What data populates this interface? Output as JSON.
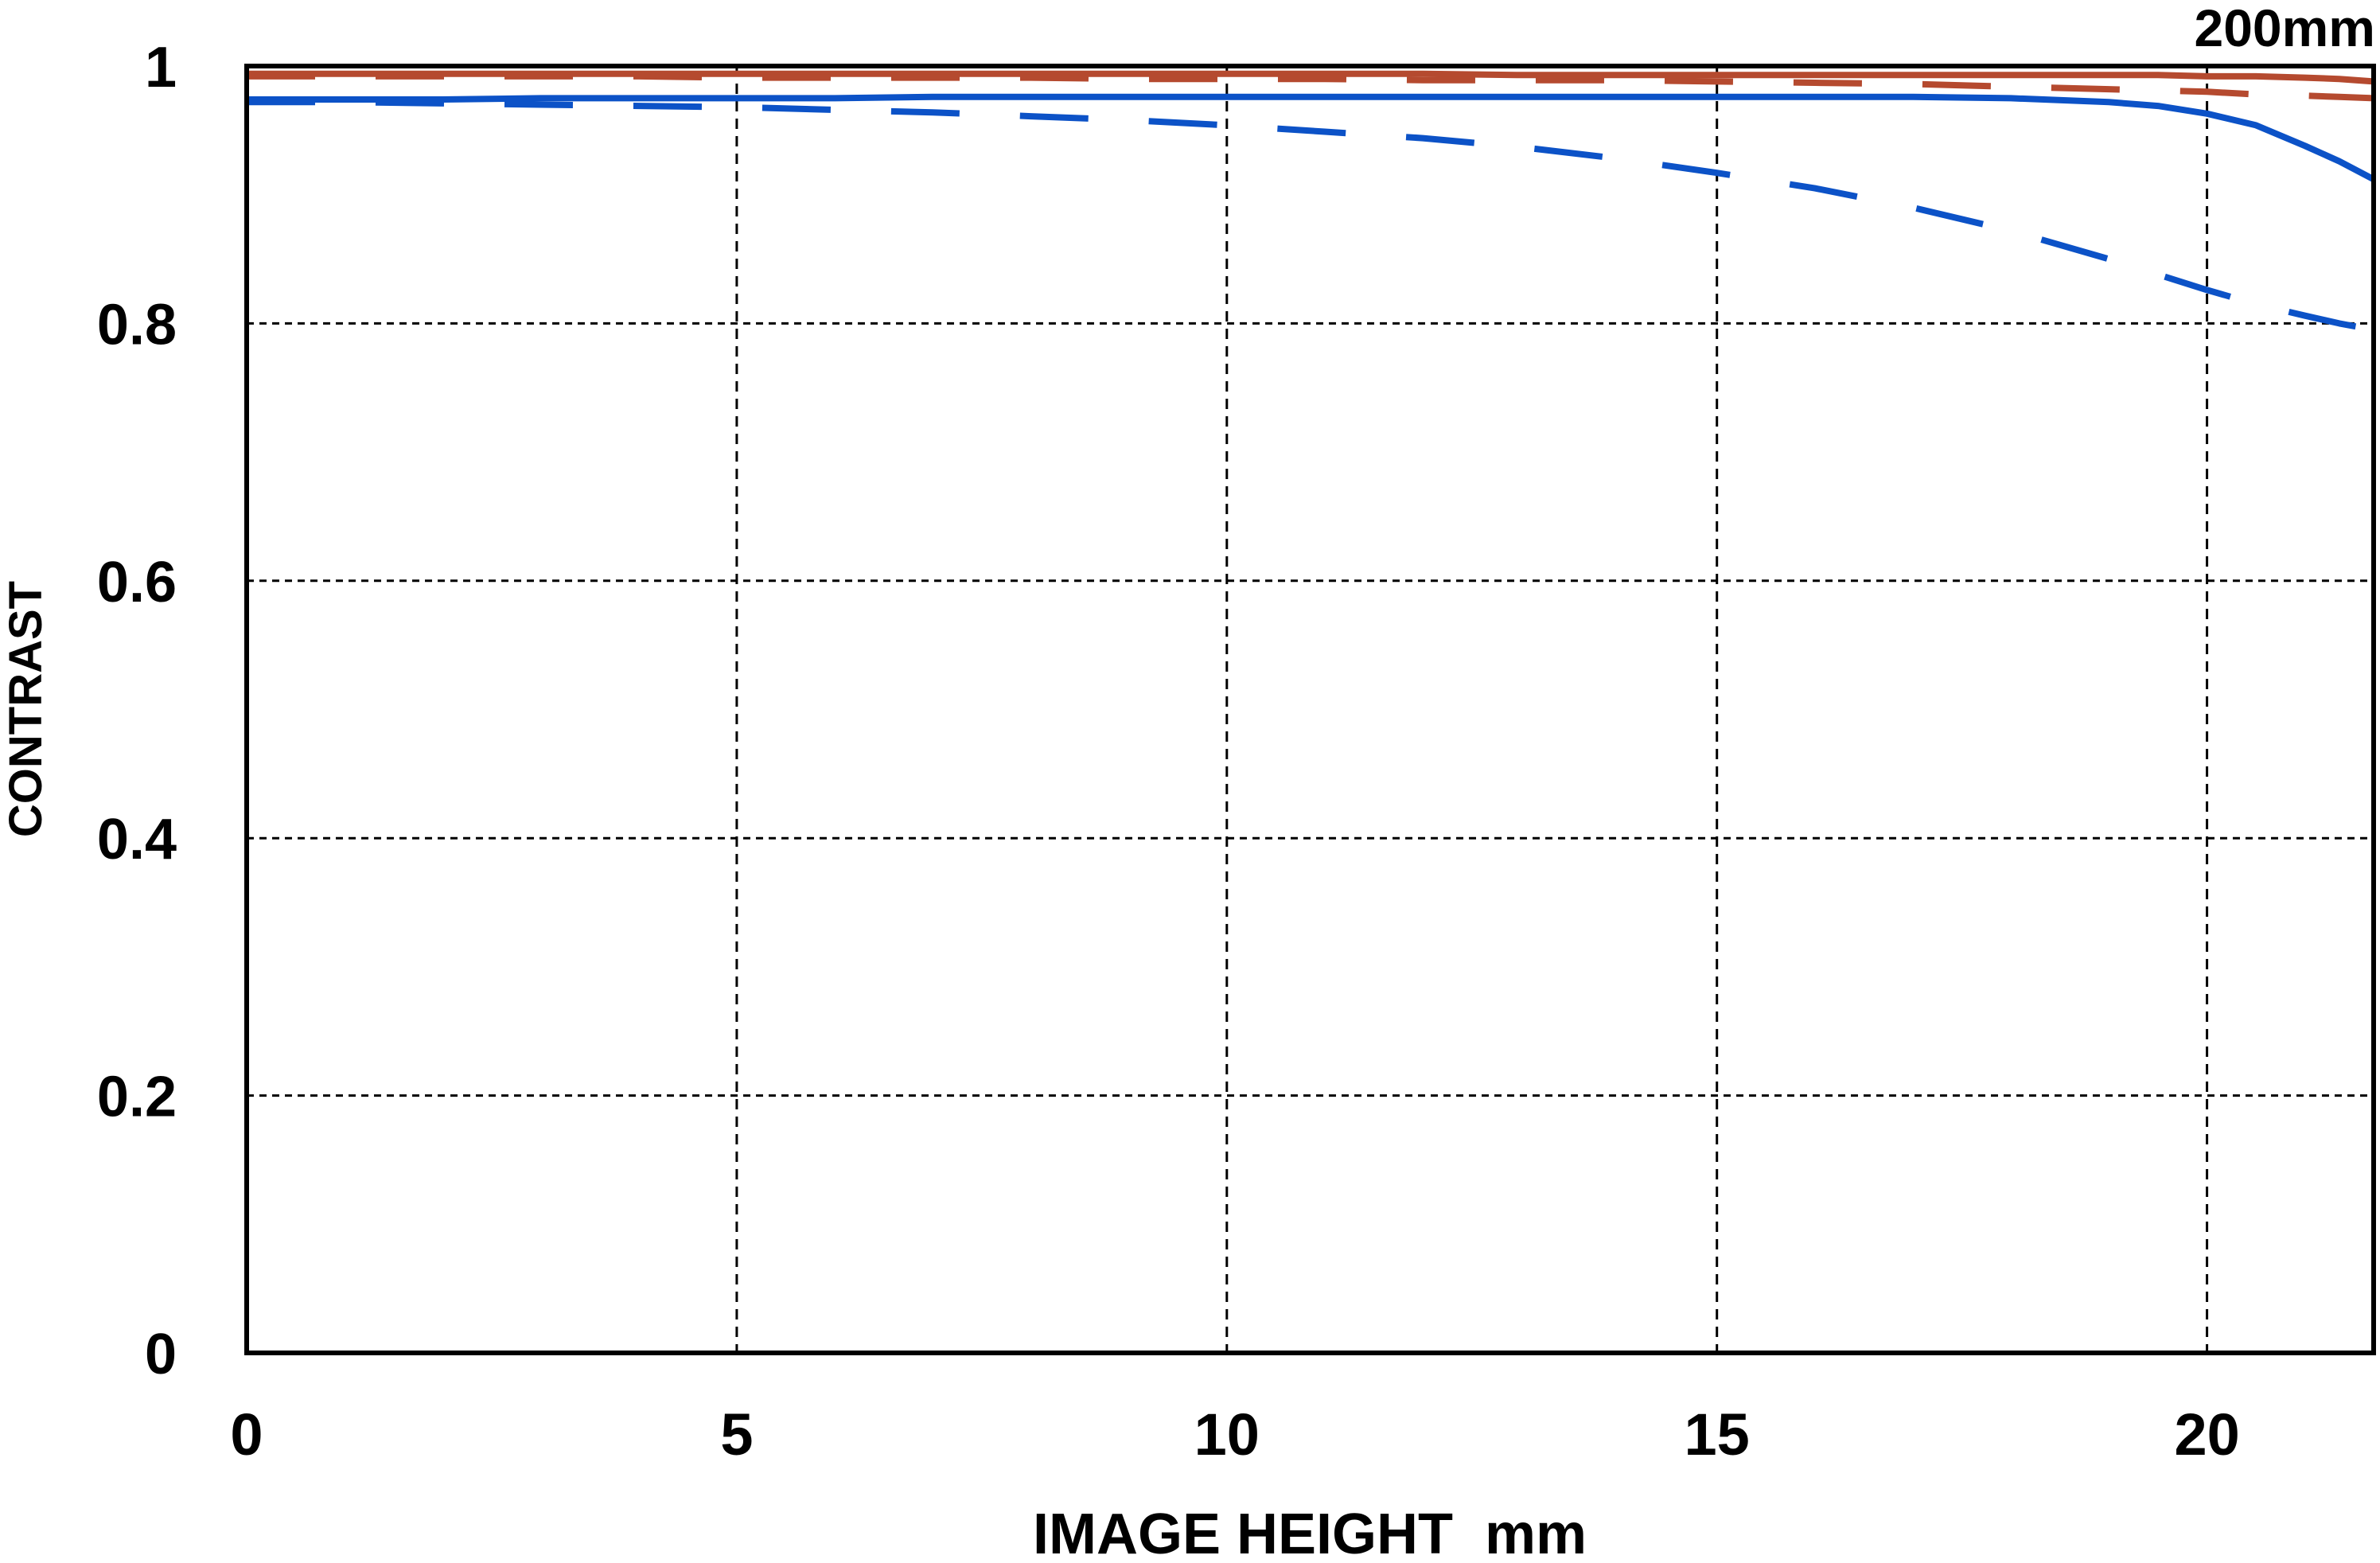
{
  "chart_data": {
    "type": "line",
    "title": "200mm",
    "xlabel": "IMAGE HEIGHT  mm",
    "ylabel": "CONTRAST",
    "xlim": [
      0,
      21.7
    ],
    "ylim": [
      0,
      1
    ],
    "x_ticks": [
      0,
      5,
      10,
      15,
      20
    ],
    "x_tick_labels": [
      "0",
      "5",
      "10",
      "15",
      "20"
    ],
    "y_ticks": [
      0,
      0.2,
      0.4,
      0.6,
      0.8,
      1
    ],
    "y_tick_labels": [
      "0",
      "0.2",
      "0.4",
      "0.6",
      "0.8",
      "1"
    ],
    "grid": "dotted",
    "legend_position": "none",
    "frame_color": "#000000",
    "colors": {
      "red": "#b54a2f",
      "blue": "#0c52c7"
    },
    "series": [
      {
        "name": "red-solid",
        "color": "#b54a2f",
        "style": "solid",
        "x": [
          0,
          1,
          2,
          3,
          4,
          5,
          6,
          7,
          8,
          9,
          10,
          11,
          12,
          13,
          14,
          15,
          16,
          17,
          18,
          19,
          19.5,
          20,
          20.5,
          21,
          21.35,
          21.7
        ],
        "y": [
          0.994,
          0.994,
          0.994,
          0.994,
          0.994,
          0.994,
          0.994,
          0.994,
          0.994,
          0.994,
          0.994,
          0.994,
          0.994,
          0.993,
          0.993,
          0.993,
          0.993,
          0.993,
          0.993,
          0.993,
          0.993,
          0.992,
          0.992,
          0.991,
          0.99,
          0.988
        ]
      },
      {
        "name": "red-dashed",
        "color": "#b54a2f",
        "style": "dashed",
        "x": [
          0,
          1,
          2,
          3,
          4,
          5,
          6,
          7,
          8,
          9,
          10,
          11,
          12,
          13,
          14,
          15,
          16,
          17,
          18,
          19,
          19.5,
          20,
          20.5,
          21,
          21.35,
          21.7
        ],
        "y": [
          0.992,
          0.992,
          0.992,
          0.992,
          0.992,
          0.991,
          0.991,
          0.991,
          0.991,
          0.99,
          0.99,
          0.99,
          0.989,
          0.989,
          0.989,
          0.988,
          0.987,
          0.986,
          0.984,
          0.982,
          0.981,
          0.98,
          0.978,
          0.977,
          0.976,
          0.975
        ]
      },
      {
        "name": "blue-solid",
        "color": "#0c52c7",
        "style": "solid",
        "x": [
          0,
          1,
          2,
          3,
          4,
          5,
          6,
          7,
          8,
          9,
          10,
          11,
          12,
          13,
          14,
          15,
          16,
          17,
          18,
          19,
          19.5,
          20,
          20.5,
          21,
          21.35,
          21.7
        ],
        "y": [
          0.974,
          0.974,
          0.974,
          0.975,
          0.975,
          0.975,
          0.975,
          0.976,
          0.976,
          0.976,
          0.976,
          0.976,
          0.976,
          0.976,
          0.976,
          0.976,
          0.976,
          0.976,
          0.975,
          0.972,
          0.969,
          0.963,
          0.954,
          0.938,
          0.926,
          0.912
        ]
      },
      {
        "name": "blue-dashed",
        "color": "#0c52c7",
        "style": "dashed",
        "x": [
          0,
          1,
          2,
          3,
          4,
          5,
          6,
          7,
          8,
          9,
          10,
          11,
          12,
          13,
          14,
          15,
          16,
          17,
          18,
          19,
          19.5,
          20,
          20.5,
          21,
          21.35,
          21.7
        ],
        "y": [
          0.972,
          0.972,
          0.971,
          0.97,
          0.969,
          0.968,
          0.966,
          0.964,
          0.961,
          0.958,
          0.954,
          0.949,
          0.944,
          0.937,
          0.928,
          0.917,
          0.905,
          0.89,
          0.872,
          0.85,
          0.838,
          0.826,
          0.815,
          0.806,
          0.8,
          0.795
        ]
      }
    ]
  }
}
